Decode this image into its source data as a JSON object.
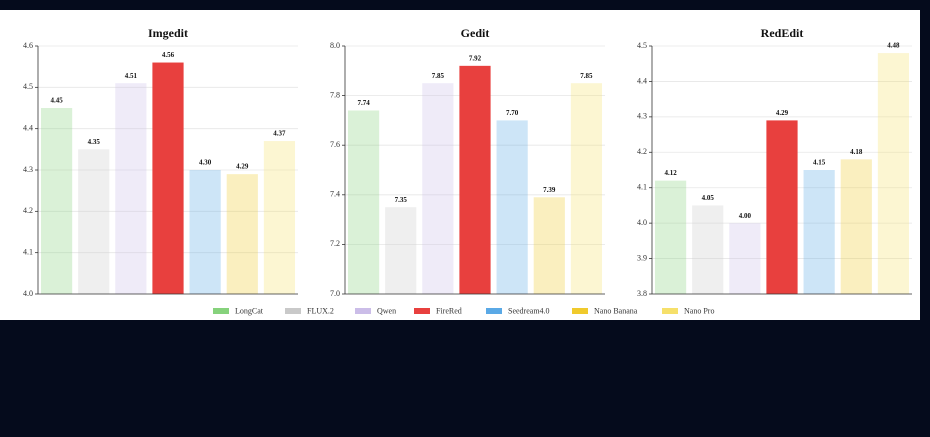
{
  "legend": {
    "names": [
      "LongCat",
      "FLUX.2",
      "Qwen",
      "FireRed",
      "Seedream4.0",
      "Nano Banana",
      "Nano Pro"
    ],
    "colors": [
      "#86d27c",
      "#c9c9c9",
      "#cbbde8",
      "#e8403e",
      "#5aa9e6",
      "#f0ca2c",
      "#f6e06a"
    ]
  },
  "chart_data": [
    {
      "type": "bar",
      "title": "Imgedit",
      "values": [
        4.45,
        4.35,
        4.51,
        4.56,
        4.3,
        4.29,
        4.37
      ],
      "value_labels": [
        "4.45",
        "4.35",
        "4.51",
        "4.56",
        "4.30",
        "4.29",
        "4.37"
      ],
      "ylim": [
        4.0,
        4.6
      ],
      "yticks": [
        {
          "value": 4.0,
          "label": "4.0"
        },
        4.1,
        4.2,
        4.3,
        4.4,
        4.5,
        4.6
      ],
      "grid": true
    },
    {
      "type": "bar",
      "title": "Gedit",
      "values": [
        7.74,
        7.35,
        7.85,
        7.92,
        7.7,
        7.39,
        7.85
      ],
      "value_labels": [
        "7.74",
        "7.35",
        "7.85",
        "7.92",
        "7.70",
        "7.39",
        "7.85"
      ],
      "ylim": [
        7.0,
        8.0
      ],
      "yticks": [
        {
          "value": 7.0,
          "label": "7.0"
        },
        7.2,
        7.4,
        7.6,
        7.8,
        {
          "value": 8.0,
          "label": "8.0"
        }
      ],
      "grid": true
    },
    {
      "type": "bar",
      "title": "RedEdit",
      "values": [
        4.12,
        4.05,
        4.0,
        4.29,
        4.15,
        4.18,
        4.48
      ],
      "value_labels": [
        "4.12",
        "4.05",
        "4.00",
        "4.29",
        "4.15",
        "4.18",
        "4.48"
      ],
      "ylim": [
        3.8,
        4.5
      ],
      "yticks": [
        3.8,
        3.9,
        {
          "value": 4.0,
          "label": "4.0"
        },
        4.1,
        4.2,
        4.3,
        4.4,
        4.5
      ],
      "grid": true
    }
  ]
}
